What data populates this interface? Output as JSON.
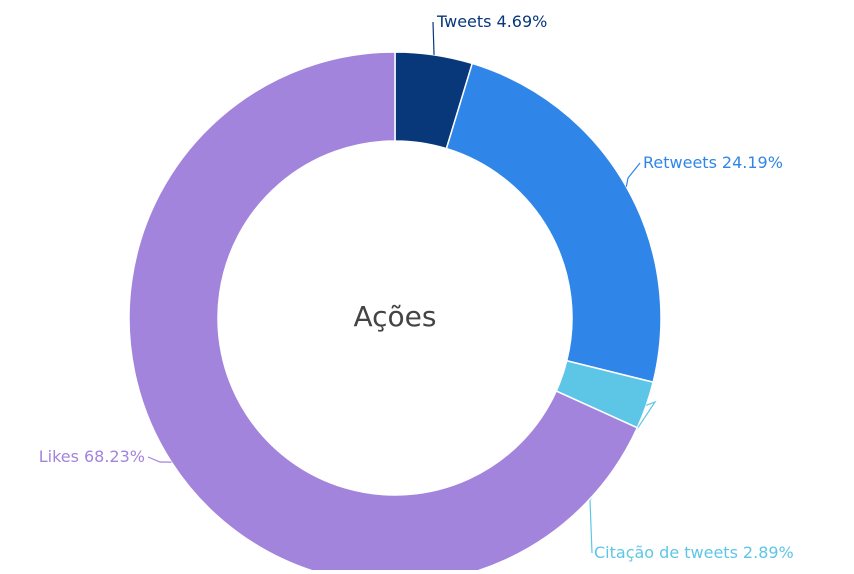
{
  "chart_data": {
    "type": "donut",
    "title": "Ações",
    "categories": [
      "Tweets",
      "Retweets",
      "Citação de tweets",
      "Likes"
    ],
    "values": [
      4.69,
      24.19,
      2.89,
      68.23
    ],
    "value_labels": [
      "4.69%",
      "24.19%",
      "2.89%",
      "68.23%"
    ],
    "colors": [
      "#08387a",
      "#2f86e8",
      "#5dc6e6",
      "#a384dc"
    ]
  }
}
